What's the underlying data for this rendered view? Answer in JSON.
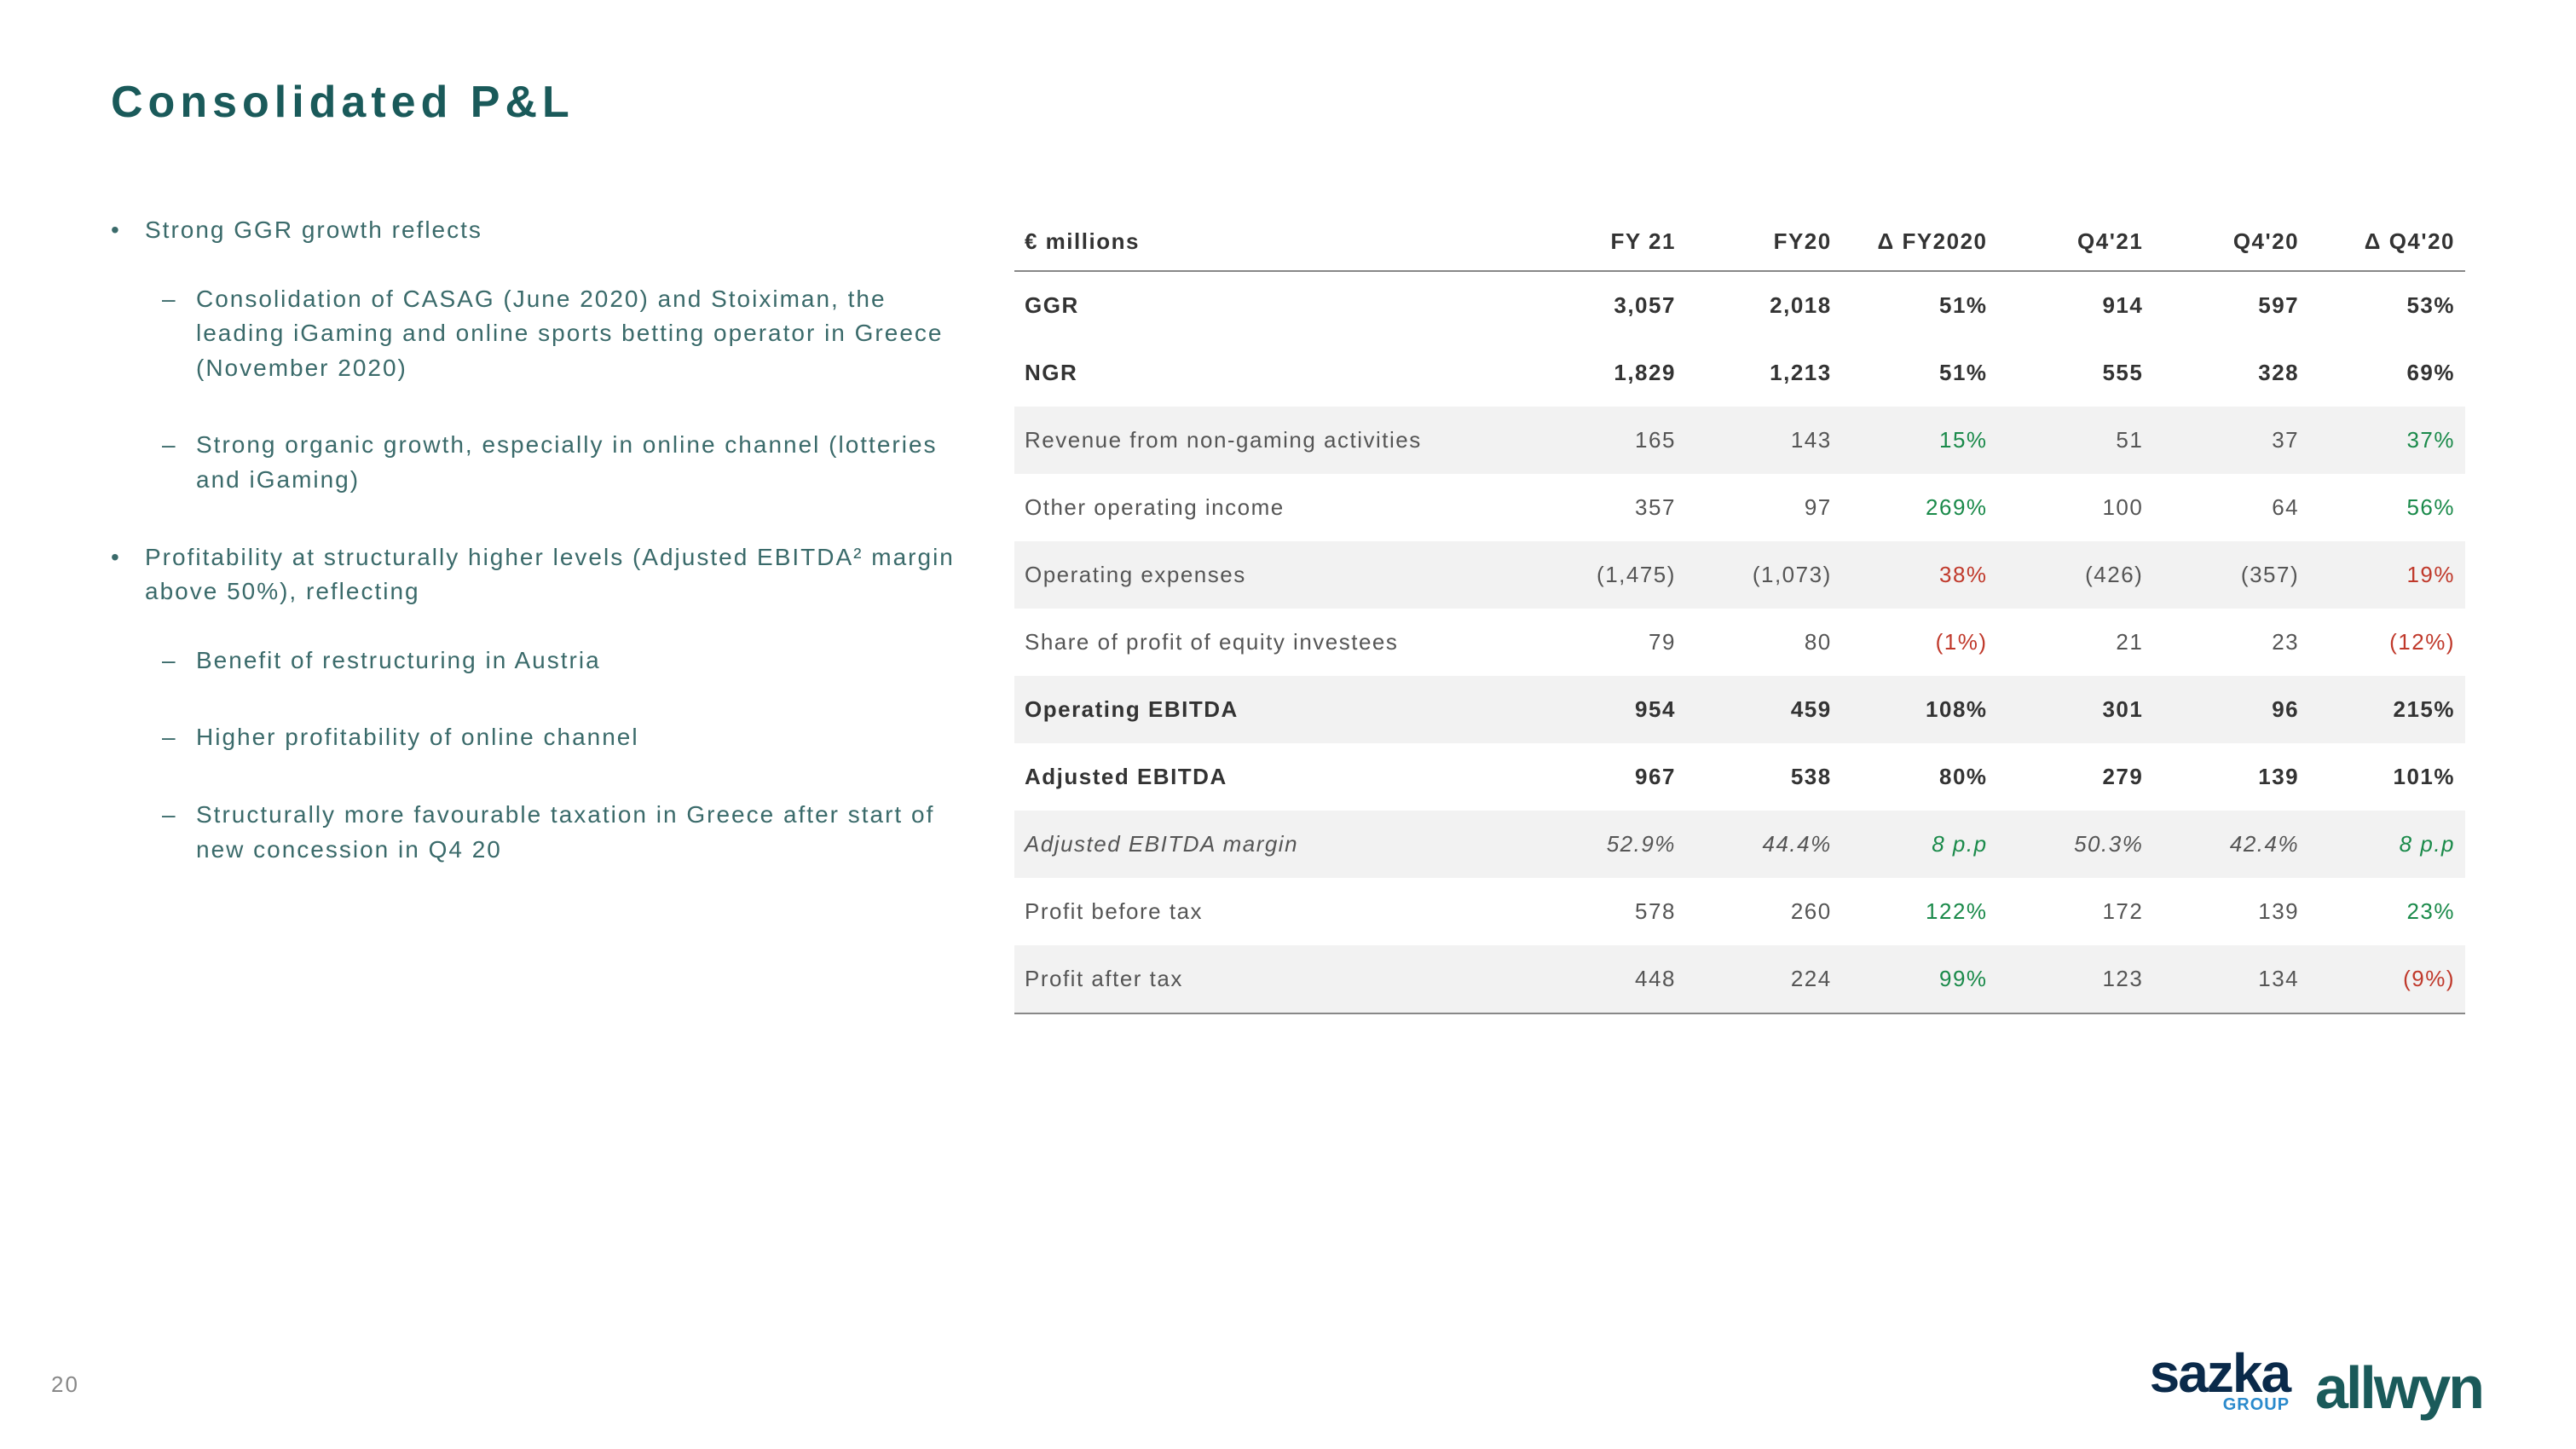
{
  "title": "Consolidated P&L",
  "pageNumber": "20",
  "bullets": [
    {
      "level": 1,
      "text": "Strong GGR growth reflects"
    },
    {
      "level": 2,
      "text": "Consolidation of CASAG (June 2020) and Stoiximan, the leading iGaming and online sports betting operator in Greece (November 2020)"
    },
    {
      "level": 2,
      "text": "Strong organic growth, especially in online channel (lotteries and iGaming)"
    },
    {
      "level": 1,
      "text": "Profitability at structurally higher levels (Adjusted EBITDA² margin above 50%), reflecting"
    },
    {
      "level": 2,
      "text": "Benefit of restructuring in Austria"
    },
    {
      "level": 2,
      "text": "Higher profitability of online channel"
    },
    {
      "level": 2,
      "text": "Structurally more favourable taxation in Greece after start of new concession in Q4 20"
    }
  ],
  "table": {
    "headers": [
      "€ millions",
      "FY 21",
      "FY20",
      "Δ FY2020",
      "Q4'21",
      "Q4'20",
      "Δ Q4'20"
    ],
    "rows": [
      {
        "label": "GGR",
        "fy21": "3,057",
        "fy20": "2,018",
        "dfy": "51%",
        "dfyClass": "green",
        "q421": "914",
        "q420": "597",
        "dq4": "53%",
        "dq4Class": "green",
        "bold": true
      },
      {
        "label": "NGR",
        "fy21": "1,829",
        "fy20": "1,213",
        "dfy": "51%",
        "dfyClass": "green",
        "q421": "555",
        "q420": "328",
        "dq4": "69%",
        "dq4Class": "green",
        "bold": true
      },
      {
        "label": "Revenue from non-gaming activities",
        "fy21": "165",
        "fy20": "143",
        "dfy": "15%",
        "dfyClass": "green",
        "q421": "51",
        "q420": "37",
        "dq4": "37%",
        "dq4Class": "green",
        "shaded": true
      },
      {
        "label": "Other operating income",
        "fy21": "357",
        "fy20": "97",
        "dfy": "269%",
        "dfyClass": "green",
        "q421": "100",
        "q420": "64",
        "dq4": "56%",
        "dq4Class": "green"
      },
      {
        "label": "Operating expenses",
        "fy21": "(1,475)",
        "fy20": "(1,073)",
        "dfy": "38%",
        "dfyClass": "red",
        "q421": "(426)",
        "q420": "(357)",
        "dq4": "19%",
        "dq4Class": "red",
        "shaded": true
      },
      {
        "label": "Share of profit of equity investees",
        "fy21": "79",
        "fy20": "80",
        "dfy": "(1%)",
        "dfyClass": "red",
        "q421": "21",
        "q420": "23",
        "dq4": "(12%)",
        "dq4Class": "red"
      },
      {
        "label": "Operating EBITDA",
        "fy21": "954",
        "fy20": "459",
        "dfy": "108%",
        "dfyClass": "green",
        "q421": "301",
        "q420": "96",
        "dq4": "215%",
        "dq4Class": "green",
        "bold": true,
        "shaded": true
      },
      {
        "label": "Adjusted EBITDA",
        "fy21": "967",
        "fy20": "538",
        "dfy": "80%",
        "dfyClass": "green",
        "q421": "279",
        "q420": "139",
        "dq4": "101%",
        "dq4Class": "green",
        "bold": true
      },
      {
        "label": "Adjusted EBITDA margin",
        "fy21": "52.9%",
        "fy20": "44.4%",
        "dfy": "8 p.p",
        "dfyClass": "green",
        "q421": "50.3%",
        "q420": "42.4%",
        "dq4": "8 p.p",
        "dq4Class": "green",
        "italic": true,
        "shaded": true
      },
      {
        "label": "Profit before tax",
        "fy21": "578",
        "fy20": "260",
        "dfy": "122%",
        "dfyClass": "green",
        "q421": "172",
        "q420": "139",
        "dq4": "23%",
        "dq4Class": "green"
      },
      {
        "label": "Profit after tax",
        "fy21": "448",
        "fy20": "224",
        "dfy": "99%",
        "dfyClass": "green",
        "q421": "123",
        "q420": "134",
        "dq4": "(9%)",
        "dq4Class": "red",
        "shaded": true,
        "bottomLine": true
      }
    ]
  },
  "logos": {
    "sazkaMain": "sazka",
    "sazkaSub": "GROUP",
    "allwyn": "allwyn"
  }
}
